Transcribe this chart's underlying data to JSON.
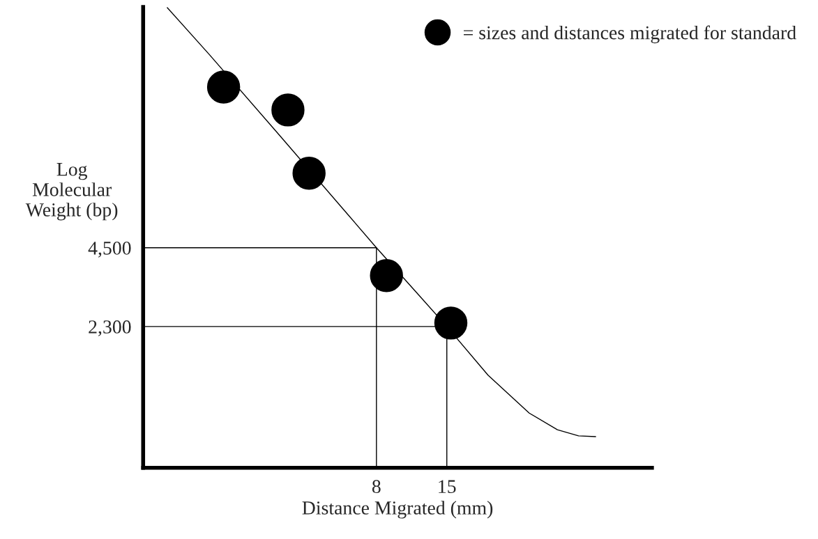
{
  "chart_data": {
    "type": "scatter",
    "xlabel": "Distance Migrated (mm)",
    "ylabel": "Log\nMolecular\nWeight (bp)",
    "log": "y",
    "xlim": [
      -15.2,
      35.4
    ],
    "ylim": [
      690,
      35000
    ],
    "xticks": [
      8,
      15
    ],
    "yticks": [
      {
        "value": 2300,
        "label": "2,300"
      },
      {
        "value": 4500,
        "label": "4,500"
      }
    ],
    "grid": false,
    "legend": "top right",
    "series": [
      {
        "name": "= sizes and distances migrated for standard",
        "color": "#000000",
        "marker": "circle",
        "x": [
          -7.2,
          -0.8,
          1.3,
          9.0,
          15.4
        ],
        "values": [
          17700,
          14560,
          8490,
          3550,
          2370
        ]
      },
      {
        "type": "line",
        "color": "#000000",
        "marker": "none",
        "x": [
          -12.8,
          -8.6,
          -1.7,
          5.2,
          8,
          12.2,
          15,
          19.1,
          23.2,
          26.0,
          28.1,
          29.8
        ],
        "values": [
          34800,
          23300,
          11800,
          5950,
          4500,
          3010,
          2300,
          1520,
          1100,
          955,
          906,
          900
        ]
      },
      {
        "type": "line",
        "color": "#000000",
        "marker": "none",
        "x": [
          -15.2,
          8,
          8
        ],
        "values": [
          4500,
          4500,
          690
        ]
      },
      {
        "type": "line",
        "color": "#000000",
        "marker": "none",
        "x": [
          -15.2,
          15,
          15
        ],
        "values": [
          2300,
          2300,
          690
        ]
      }
    ]
  }
}
